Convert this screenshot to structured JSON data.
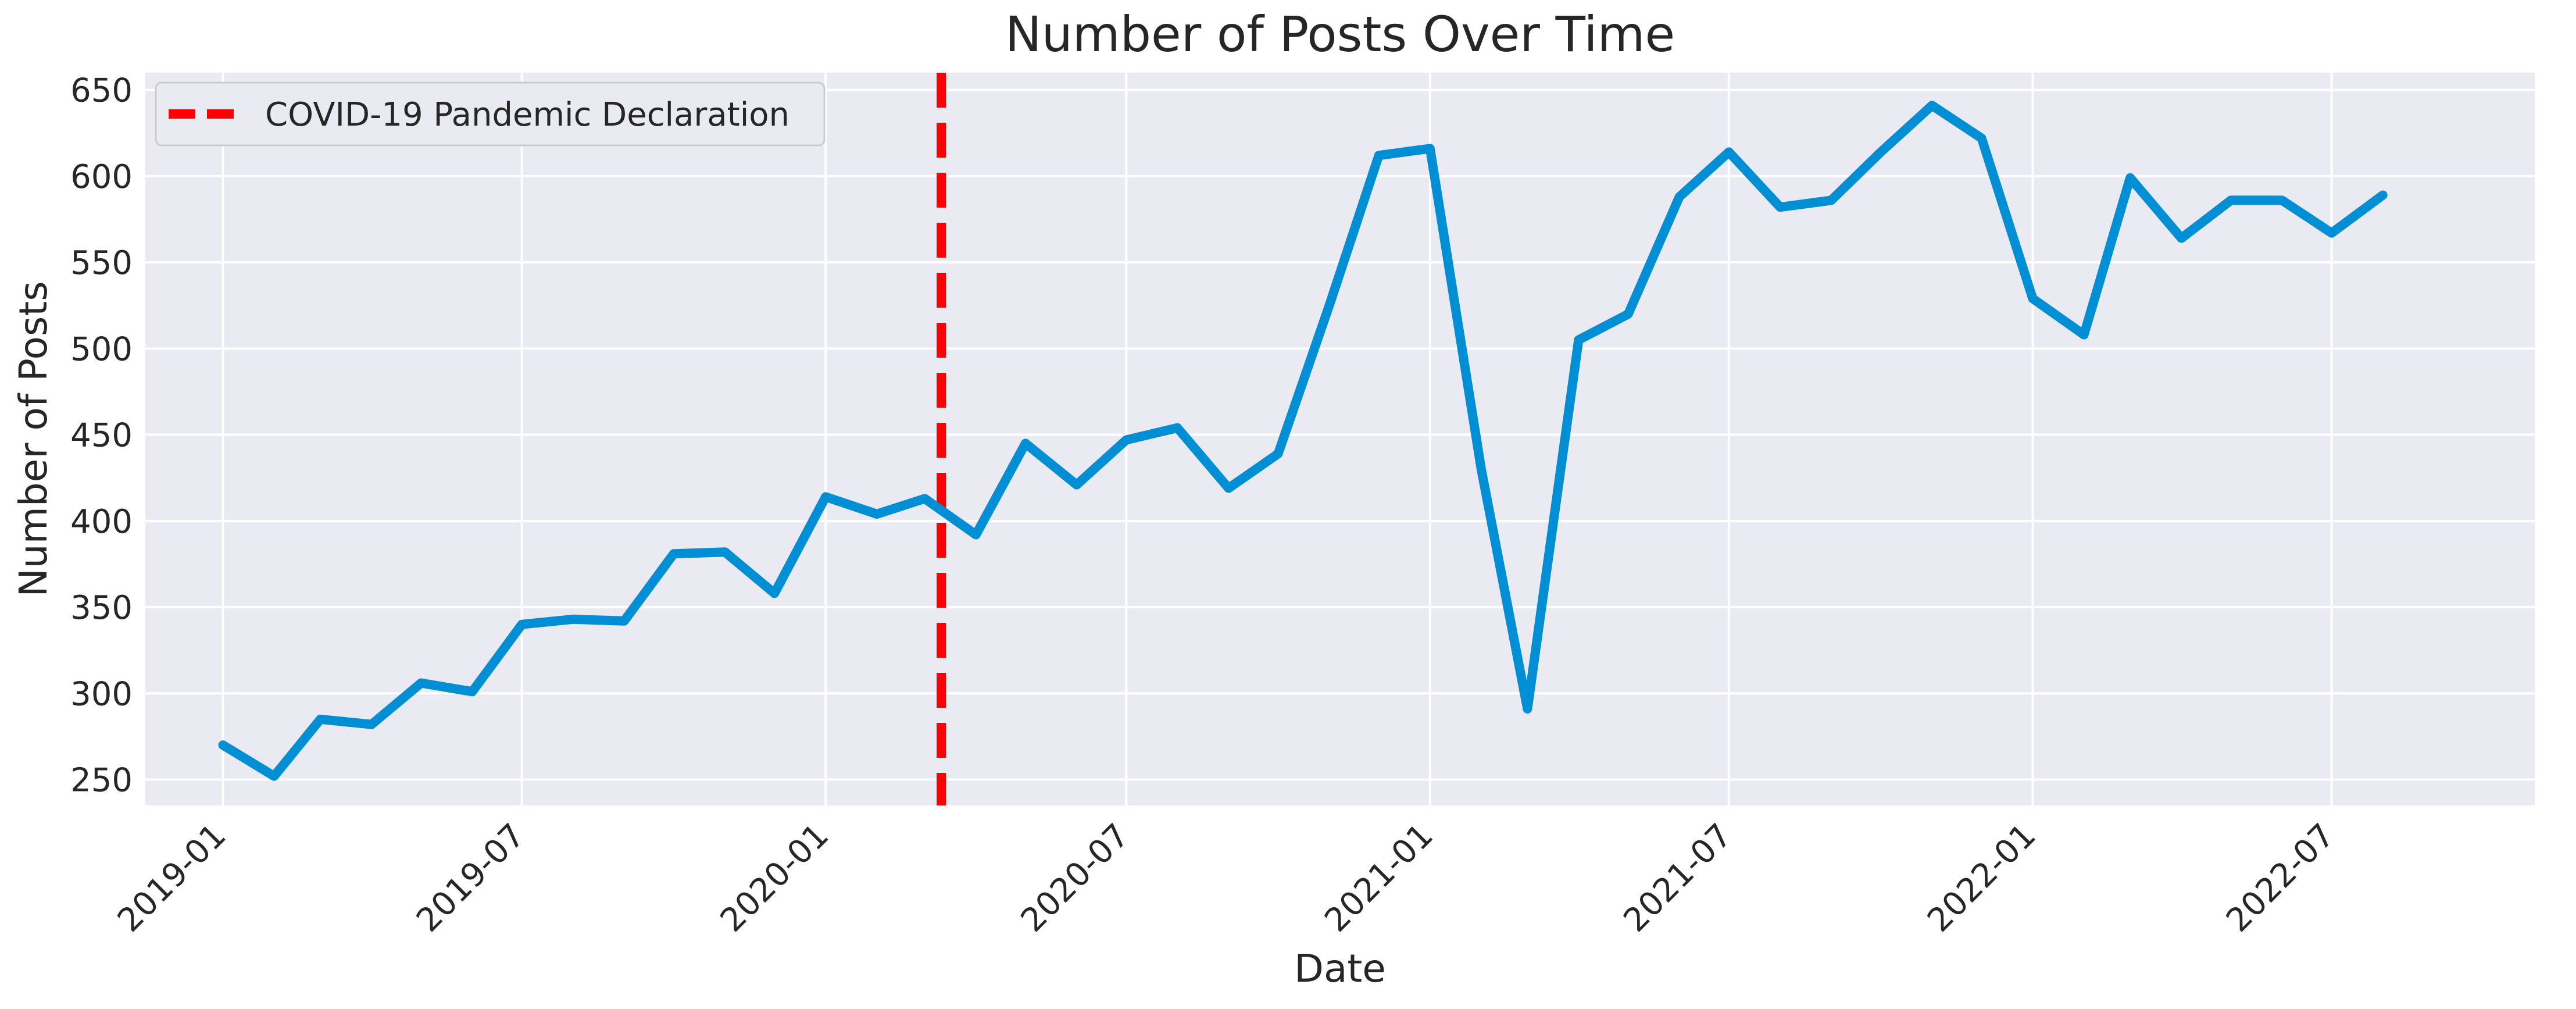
{
  "colors": {
    "background": "#ffffff",
    "plot_background": "#eaeaf2",
    "grid": "#ffffff",
    "line": "#008fd5",
    "annotation": "#ff0000",
    "text": "#262626"
  },
  "chart_data": {
    "type": "line",
    "title": "Number of Posts Over Time",
    "xlabel": "Date",
    "ylabel": "Number of Posts",
    "x_is_date": true,
    "xlim": [
      "2018-11-15",
      "2022-11-01"
    ],
    "ylim": [
      235,
      660
    ],
    "grid": true,
    "legend_position": "top-left",
    "x_ticks": [
      "2019-01",
      "2019-07",
      "2020-01",
      "2020-07",
      "2021-01",
      "2021-07",
      "2022-01",
      "2022-07"
    ],
    "y_ticks": [
      250,
      300,
      350,
      400,
      450,
      500,
      550,
      600,
      650
    ],
    "series": [
      {
        "x": [
          "2019-01-01",
          "2019-02-01",
          "2019-03-01",
          "2019-04-01",
          "2019-05-01",
          "2019-06-01",
          "2019-07-01",
          "2019-08-01",
          "2019-09-01",
          "2019-10-01",
          "2019-11-01",
          "2019-12-01",
          "2020-01-01",
          "2020-02-01",
          "2020-03-01",
          "2020-04-01",
          "2020-05-01",
          "2020-06-01",
          "2020-07-01",
          "2020-08-01",
          "2020-09-01",
          "2020-10-01",
          "2020-11-01",
          "2020-12-01",
          "2021-01-01",
          "2021-02-01",
          "2021-03-01",
          "2021-04-01",
          "2021-05-01",
          "2021-06-01",
          "2021-07-01",
          "2021-08-01",
          "2021-09-01",
          "2021-10-01",
          "2021-11-01",
          "2021-12-01",
          "2022-01-01",
          "2022-02-01",
          "2022-03-01",
          "2022-04-01",
          "2022-05-01",
          "2022-06-01",
          "2022-07-01",
          "2022-08-01"
        ],
        "values": [
          270,
          252,
          285,
          282,
          306,
          301,
          340,
          343,
          342,
          381,
          382,
          358,
          414,
          404,
          413,
          392,
          445,
          421,
          447,
          454,
          419,
          439,
          525,
          612,
          616,
          430,
          291,
          505,
          520,
          588,
          614,
          582,
          586,
          614,
          641,
          622,
          529,
          508,
          599,
          564,
          586,
          586,
          567,
          589
        ]
      }
    ],
    "vertical_lines": [
      {
        "x": "2020-03-11",
        "label": "COVID-19 Pandemic Declaration",
        "style": "dashed"
      }
    ]
  }
}
